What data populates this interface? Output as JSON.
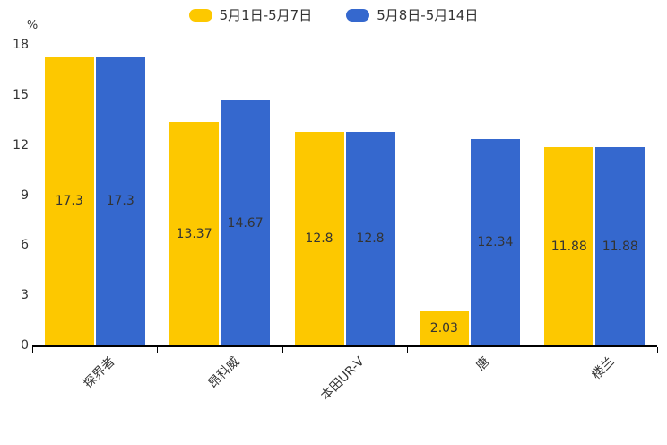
{
  "chart_data": {
    "type": "bar",
    "categories": [
      "探界者",
      "昂科威",
      "本田UR-V",
      "唐",
      "楼兰"
    ],
    "series": [
      {
        "name": "5月1日-5月7日",
        "color": "#FDC800",
        "values": [
          17.3,
          13.37,
          12.8,
          2.03,
          11.88
        ]
      },
      {
        "name": "5月8日-5月14日",
        "color": "#3568CE",
        "values": [
          17.3,
          14.67,
          12.8,
          12.34,
          11.88
        ]
      }
    ],
    "value_labels": {
      "5月1日-5月7日": [
        "17.3",
        "13.37",
        "12.8",
        "2.03",
        "11.88"
      ],
      "5月8日-5月14日": [
        "17.3",
        "14.67",
        "12.8",
        "12.34",
        "11.88"
      ]
    },
    "title": "",
    "xlabel": "",
    "ylabel": "%",
    "yticks": [
      "0",
      "3",
      "6",
      "9",
      "12",
      "15",
      "18"
    ],
    "ylim": [
      0,
      18
    ],
    "grid": false,
    "legend_position": "top",
    "label_color": "#333333",
    "axis_color": "#000000"
  }
}
